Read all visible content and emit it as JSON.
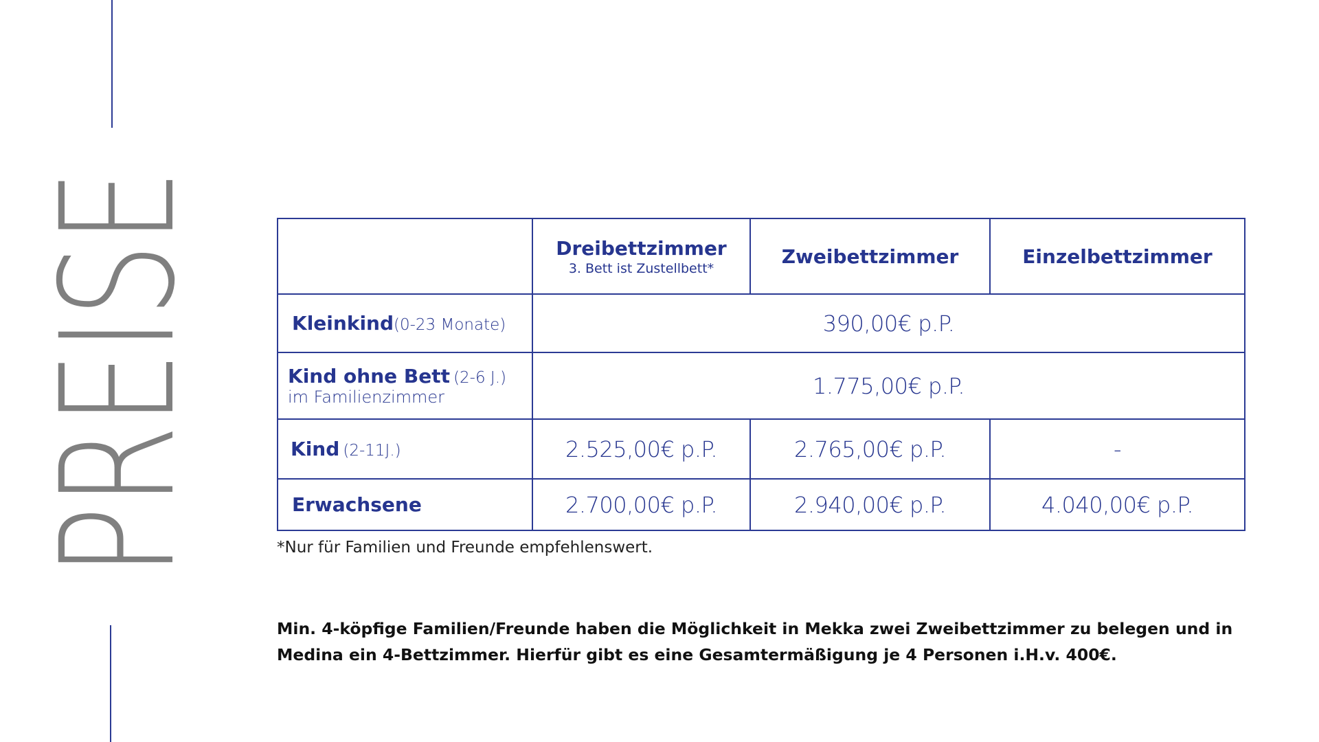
{
  "title": "PREISE",
  "colors": {
    "accent": "#26358f",
    "title_gray": "#808080"
  },
  "table": {
    "columns": [
      {
        "label": "",
        "sub": ""
      },
      {
        "label": "Dreibettzimmer",
        "sub": "3. Bett ist Zustellbett*"
      },
      {
        "label": "Zweibettzimmer",
        "sub": ""
      },
      {
        "label": "Einzelbettzimmer",
        "sub": ""
      }
    ],
    "rows": [
      {
        "label": "Kleinkind",
        "detail": "(0-23 Monate)",
        "detail2": "",
        "merged_price": "390,00€ p.P."
      },
      {
        "label": "Kind ohne Bett",
        "detail": "(2-6 J.)",
        "detail2": "im Familienzimmer",
        "merged_price": "1.775,00€ p.P."
      },
      {
        "label": "Kind",
        "detail": "(2-11J.)",
        "detail2": "",
        "prices": [
          "2.525,00€ p.P.",
          "2.765,00€ p.P.",
          "-"
        ]
      },
      {
        "label": "Erwachsene",
        "detail": "",
        "detail2": "",
        "prices": [
          "2.700,00€ p.P.",
          "2.940,00€ p.P.",
          "4.040,00€ p.P."
        ]
      }
    ]
  },
  "footnote": "*Nur für Familien und Freunde empfehlenswert.",
  "note": "Min. 4-köpfige Familien/Freunde haben die Möglichkeit in Mekka  zwei Zweibettzimmer zu belegen und in Medina ein 4-Bettzimmer. Hierfür gibt es eine Gesamtermäßigung je 4 Personen i.H.v. 400€."
}
